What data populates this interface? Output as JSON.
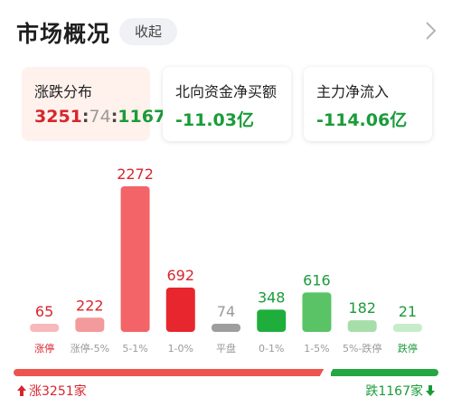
{
  "header": {
    "title": "市场概况",
    "collapse_label": "收起"
  },
  "cards": [
    {
      "label": "涨跌分布",
      "up": "3251",
      "flat": "74",
      "down": "1167",
      "sep": ":"
    },
    {
      "label": "北向资金净买额",
      "value": "-11.03亿"
    },
    {
      "label": "主力净流入",
      "value": "-114.06亿"
    }
  ],
  "chart_data": {
    "type": "bar",
    "categories": [
      "涨停",
      "涨停-5%",
      "5-1%",
      "1-0%",
      "平盘",
      "0-1%",
      "1-5%",
      "5%-跌停",
      "跌停"
    ],
    "values": [
      65,
      222,
      2272,
      692,
      74,
      348,
      616,
      182,
      21
    ],
    "value_labels": [
      "65",
      "222",
      "2272",
      "692",
      "74",
      "348",
      "616",
      "182",
      "21"
    ],
    "colors": [
      "#f7b9bb",
      "#f39a9c",
      "#f26467",
      "#e8262d",
      "#9e9e9e",
      "#1fae3b",
      "#59c365",
      "#a6dea9",
      "#c6ecca"
    ],
    "label_colors": [
      "#d6262d",
      "#d6262d",
      "#d6262d",
      "#d6262d",
      "#9a9a9a",
      "#1a9b3a",
      "#1a9b3a",
      "#1a9b3a",
      "#1a9b3a"
    ],
    "cat_label_colors": [
      "#d6262d",
      "#9a9a9a",
      "#9a9a9a",
      "#9a9a9a",
      "#9a9a9a",
      "#9a9a9a",
      "#9a9a9a",
      "#9a9a9a",
      "#1a9b3a"
    ],
    "ylim": [
      0,
      2272
    ],
    "grid": false,
    "title": "",
    "xlabel": "",
    "ylabel": ""
  },
  "summary": {
    "up_text": "涨3251家",
    "down_text": "跌1167家",
    "up_count": 3251,
    "down_count": 1167
  },
  "colors": {
    "up": "#d6262d",
    "down": "#1a9b3a",
    "flat": "#9a9a9a",
    "active_card_bg": "#fff1ec"
  }
}
